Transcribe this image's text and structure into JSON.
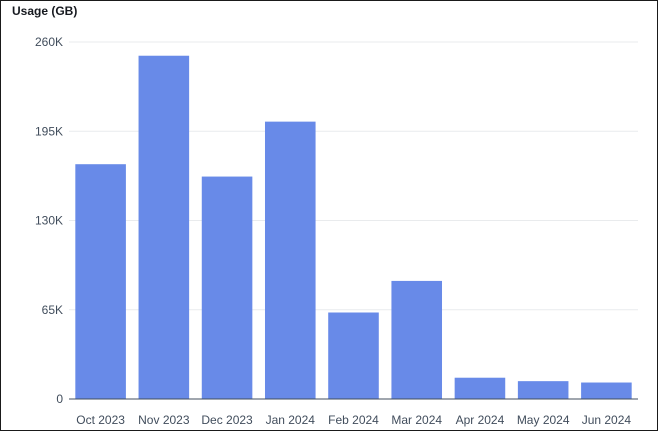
{
  "chart_data": {
    "type": "bar",
    "title": "Usage (GB)",
    "xlabel": "",
    "ylabel": "Usage (GB)",
    "categories": [
      "Oct 2023",
      "Nov 2023",
      "Dec 2023",
      "Jan 2024",
      "Feb 2024",
      "Mar 2024",
      "Apr 2024",
      "May 2024",
      "Jun 2024"
    ],
    "values": [
      171000,
      250000,
      162000,
      202000,
      63000,
      86000,
      15500,
      13000,
      12000
    ],
    "ylim": [
      0,
      260000
    ],
    "yticks": [
      0,
      65000,
      130000,
      195000,
      260000
    ],
    "ytick_labels": [
      "0",
      "65K",
      "130K",
      "195K",
      "260K"
    ],
    "grid": true,
    "legend": "none",
    "colors": {
      "bar": "#688ae8",
      "grid": "#e9ebed",
      "axis": "#414d5c",
      "text": "#414d5c",
      "title": "#16191f"
    }
  }
}
